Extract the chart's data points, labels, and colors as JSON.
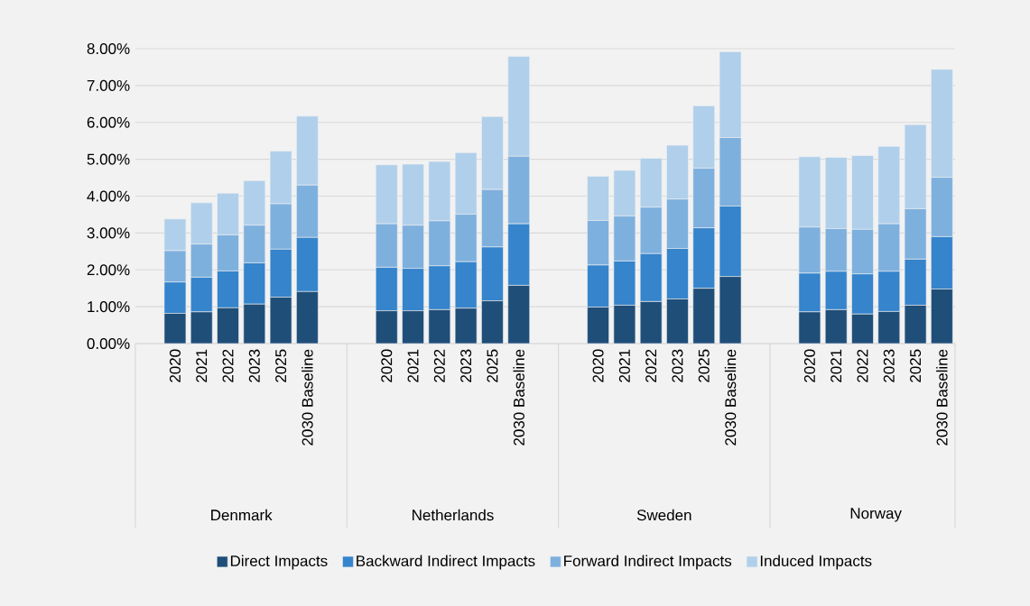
{
  "chart_data": {
    "type": "bar",
    "stacked": true,
    "categories": [
      "2020",
      "2021",
      "2022",
      "2023",
      "2025",
      "2030 Baseline",
      "2020",
      "2021",
      "2022",
      "2023",
      "2025",
      "2030 Baseline",
      "2020",
      "2021",
      "2022",
      "2023",
      "2025",
      "2030 Baseline",
      "2020",
      "2021",
      "2022",
      "2023",
      "2025",
      "2030 Baseline"
    ],
    "annotations": [
      "Denmark",
      "Netherlands",
      "Sweden",
      "Norway"
    ],
    "series": [
      {
        "name": "Direct Impacts",
        "color": "#1f4e79",
        "values": [
          0.82,
          0.86,
          0.97,
          1.07,
          1.26,
          1.41,
          0.89,
          0.89,
          0.92,
          0.96,
          1.16,
          1.58,
          0.99,
          1.04,
          1.14,
          1.21,
          1.5,
          1.82,
          0.86,
          0.92,
          0.8,
          0.87,
          1.04,
          1.48
        ]
      },
      {
        "name": "Backward Indirect Impacts",
        "color": "#3584cc",
        "values": [
          0.85,
          0.94,
          1.0,
          1.12,
          1.3,
          1.47,
          1.18,
          1.15,
          1.19,
          1.26,
          1.46,
          1.67,
          1.14,
          1.2,
          1.3,
          1.37,
          1.64,
          1.91,
          1.05,
          1.04,
          1.09,
          1.09,
          1.25,
          1.42
        ]
      },
      {
        "name": "Forward Indirect Impacts",
        "color": "#7eb0de",
        "values": [
          0.85,
          0.9,
          0.98,
          1.02,
          1.23,
          1.42,
          1.18,
          1.17,
          1.22,
          1.29,
          1.56,
          1.83,
          1.21,
          1.22,
          1.26,
          1.34,
          1.62,
          1.86,
          1.25,
          1.16,
          1.21,
          1.29,
          1.37,
          1.61
        ]
      },
      {
        "name": "Induced Impacts",
        "color": "#b0cfeb",
        "values": [
          0.86,
          1.12,
          1.13,
          1.21,
          1.43,
          1.87,
          1.6,
          1.66,
          1.61,
          1.67,
          1.98,
          2.71,
          1.2,
          1.24,
          1.33,
          1.46,
          1.69,
          2.33,
          1.91,
          1.93,
          2.0,
          2.1,
          2.28,
          2.93
        ]
      }
    ],
    "ylim": [
      0,
      8
    ],
    "yticks": [
      {
        "value": 0,
        "label": "0.00%"
      },
      {
        "value": 1,
        "label": "1.00%"
      },
      {
        "value": 2,
        "label": "2.00%"
      },
      {
        "value": 3,
        "label": "3.00%"
      },
      {
        "value": 4,
        "label": "4.00%"
      },
      {
        "value": 5,
        "label": "5.00%"
      },
      {
        "value": 6,
        "label": "6.00%"
      },
      {
        "value": 7,
        "label": "7.00%"
      },
      {
        "value": 8,
        "label": "8.00%"
      }
    ],
    "grid": "y",
    "legend": "bottom"
  }
}
